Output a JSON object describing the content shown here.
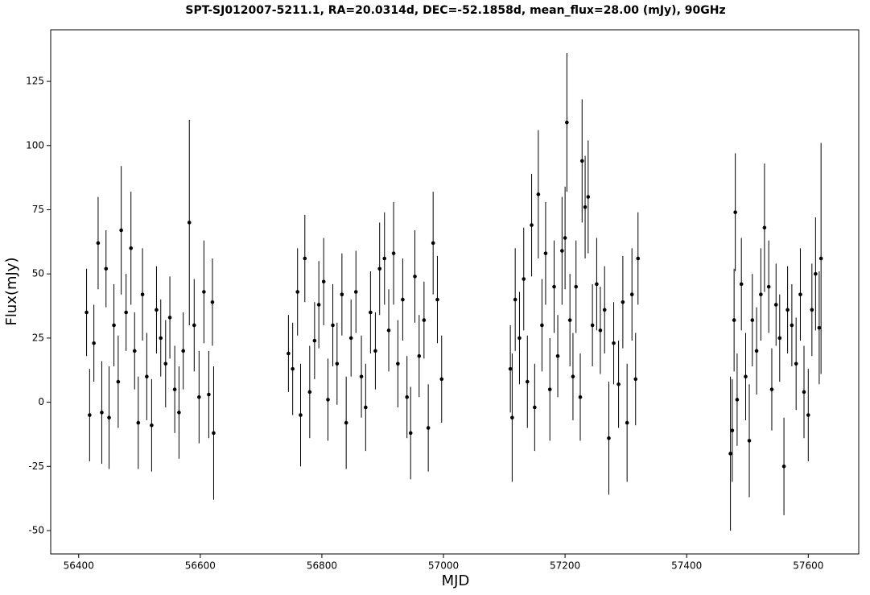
{
  "chart_data": {
    "type": "errorbar",
    "title": "SPT-SJ012007-5211.1, RA=20.0314d, DEC=-52.1858d, mean_flux=28.00 (mJy), 90GHz",
    "xlabel": "MJD",
    "ylabel": "Flux(mJy)",
    "color": "#000000",
    "xlim": [
      56354,
      57683
    ],
    "ylim": [
      -59.1,
      145.1
    ],
    "xticks": [
      56400,
      56600,
      56800,
      57000,
      57200,
      57400,
      57600
    ],
    "yticks": [
      -50,
      -25,
      0,
      25,
      50,
      75,
      100,
      125
    ],
    "x": [
      56413,
      56418,
      56425,
      56432,
      56438,
      56445,
      56450,
      56458,
      56465,
      56470,
      56478,
      56486,
      56492,
      56498,
      56505,
      56512,
      56520,
      56528,
      56535,
      56543,
      56550,
      56558,
      56565,
      56572,
      56582,
      56590,
      56598,
      56606,
      56614,
      56620,
      56622,
      56745,
      56752,
      56760,
      56765,
      56772,
      56780,
      56788,
      56795,
      56803,
      56810,
      56818,
      56825,
      56833,
      56840,
      56848,
      56856,
      56865,
      56872,
      56880,
      56888,
      56895,
      56903,
      56910,
      56918,
      56925,
      56933,
      56940,
      56946,
      56953,
      56960,
      56968,
      56975,
      56983,
      56990,
      56997,
      57110,
      57113,
      57118,
      57125,
      57132,
      57138,
      57145,
      57150,
      57156,
      57162,
      57168,
      57175,
      57182,
      57188,
      57195,
      57200,
      57203,
      57208,
      57213,
      57218,
      57225,
      57228,
      57233,
      57238,
      57245,
      57252,
      57258,
      57265,
      57272,
      57280,
      57288,
      57295,
      57302,
      57310,
      57316,
      57320,
      57472,
      57475,
      57478,
      57480,
      57483,
      57490,
      57497,
      57503,
      57508,
      57515,
      57522,
      57528,
      57535,
      57540,
      57547,
      57553,
      57560,
      57566,
      57573,
      57580,
      57587,
      57593,
      57600,
      57606,
      57612,
      57618,
      57621
    ],
    "values": [
      35,
      -5,
      23,
      62,
      -4,
      52,
      -6,
      30,
      8,
      67,
      35,
      60,
      20,
      -8,
      42,
      10,
      -9,
      36,
      25,
      15,
      33,
      5,
      -4,
      20,
      70,
      30,
      2,
      43,
      3,
      39,
      -12,
      19,
      13,
      43,
      -5,
      56,
      4,
      24,
      38,
      47,
      1,
      30,
      15,
      42,
      -8,
      25,
      43,
      10,
      -2,
      35,
      20,
      52,
      56,
      28,
      58,
      15,
      40,
      2,
      -12,
      49,
      18,
      32,
      -10,
      62,
      40,
      9,
      13,
      -6,
      40,
      25,
      48,
      8,
      69,
      -2,
      81,
      30,
      58,
      5,
      45,
      18,
      59,
      64,
      109,
      32,
      10,
      45,
      2,
      94,
      76,
      80,
      30,
      46,
      28,
      36,
      -14,
      23,
      7,
      39,
      -8,
      42,
      9,
      56,
      -20,
      -11,
      32,
      74,
      1,
      46,
      10,
      -15,
      32,
      20,
      42,
      68,
      45,
      5,
      38,
      25,
      -25,
      36,
      30,
      15,
      42,
      4,
      -5,
      36,
      50,
      29,
      56
    ],
    "errors": [
      17,
      18,
      15,
      18,
      20,
      15,
      20,
      16,
      18,
      25,
      15,
      22,
      15,
      18,
      18,
      17,
      18,
      17,
      15,
      17,
      16,
      17,
      18,
      15,
      40,
      18,
      18,
      20,
      17,
      17,
      26,
      15,
      18,
      17,
      20,
      17,
      18,
      15,
      17,
      17,
      16,
      16,
      16,
      16,
      18,
      15,
      16,
      16,
      17,
      16,
      15,
      18,
      18,
      16,
      20,
      17,
      16,
      16,
      18,
      18,
      16,
      15,
      17,
      20,
      17,
      17,
      17,
      25,
      20,
      18,
      20,
      18,
      20,
      17,
      25,
      18,
      20,
      20,
      18,
      16,
      21,
      20,
      27,
      18,
      17,
      18,
      17,
      24,
      20,
      22,
      16,
      18,
      17,
      17,
      22,
      16,
      17,
      18,
      23,
      18,
      18,
      18,
      30,
      20,
      20,
      23,
      18,
      18,
      17,
      22,
      18,
      17,
      18,
      25,
      18,
      16,
      16,
      17,
      19,
      17,
      16,
      18,
      18,
      18,
      18,
      18,
      22,
      22,
      45
    ]
  }
}
